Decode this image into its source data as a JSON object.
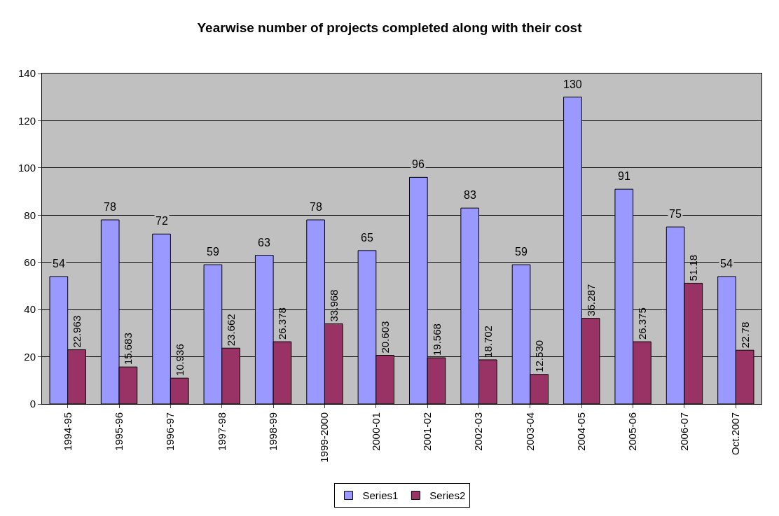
{
  "chart_data": {
    "type": "bar",
    "title": "Yearwise number of projects completed along with their cost",
    "categories": [
      "1994-95",
      "1995-96",
      "1996-97",
      "1997-98",
      "1998-99",
      "1999-2000",
      "2000-01",
      "2001-02",
      "2002-03",
      "2003-04",
      "2004-05",
      "2005-06",
      "2006-07",
      "Oct.2007"
    ],
    "series": [
      {
        "name": "Series1",
        "color": "#9999ff",
        "values": [
          54,
          78,
          72,
          59,
          63,
          78,
          65,
          96,
          83,
          59,
          130,
          91,
          75,
          54
        ],
        "value_labels": [
          "54",
          "78",
          "72",
          "59",
          "63",
          "78",
          "65",
          "96",
          "83",
          "59",
          "130",
          "91",
          "75",
          "54"
        ]
      },
      {
        "name": "Series2",
        "color": "#993366",
        "values": [
          22.963,
          15.683,
          10.936,
          23.662,
          26.378,
          33.968,
          20.603,
          19.568,
          18.702,
          12.53,
          36.287,
          26.375,
          51.18,
          22.78
        ],
        "value_labels": [
          "22.963",
          "15.683",
          "10.936",
          "23.662",
          "26.378",
          "33.968",
          "20.603",
          "19.568",
          "18.702",
          "12.530",
          "36.287",
          "26.375",
          "51.18",
          "22.78"
        ]
      }
    ],
    "ylim": [
      0,
      140
    ],
    "yticks": [
      0,
      20,
      40,
      60,
      80,
      100,
      120,
      140
    ],
    "grid": "y",
    "legend": "bottom"
  }
}
